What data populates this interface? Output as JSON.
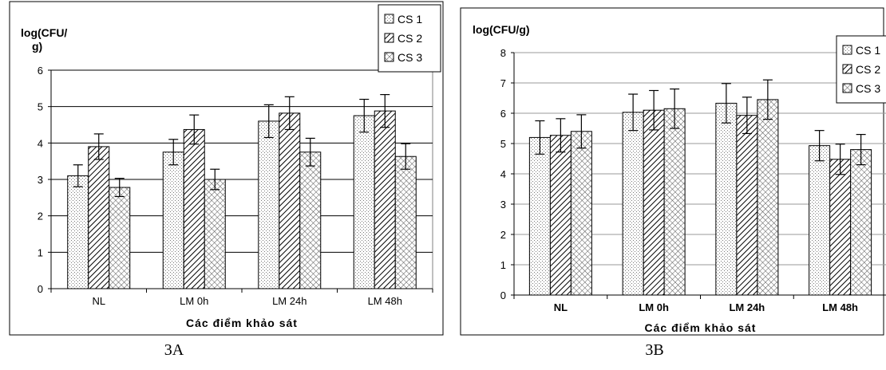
{
  "captions": [
    "3A",
    "3B"
  ],
  "chart_data": [
    {
      "type": "bar",
      "ylabel": "log(CFU/ g)",
      "xlabel": "Các điểm khảo sát",
      "categories": [
        "NL",
        "LM 0h",
        "LM 24h",
        "LM 48h"
      ],
      "ylim": [
        0,
        6
      ],
      "yticks": [
        "0",
        "1",
        "2",
        "3",
        "4",
        "5",
        "6"
      ],
      "grid": true,
      "legend": "top-right",
      "series": [
        {
          "name": "CS 1",
          "values": [
            3.1,
            3.75,
            4.6,
            4.75
          ],
          "errors": [
            0.3,
            0.35,
            0.45,
            0.45
          ]
        },
        {
          "name": "CS 2",
          "values": [
            3.9,
            4.37,
            4.82,
            4.88
          ],
          "errors": [
            0.35,
            0.4,
            0.45,
            0.45
          ]
        },
        {
          "name": "CS 3",
          "values": [
            2.78,
            3.0,
            3.75,
            3.63
          ],
          "errors": [
            0.25,
            0.28,
            0.38,
            0.35
          ]
        }
      ]
    },
    {
      "type": "bar",
      "ylabel": "log(CFU/g)",
      "xlabel": "Các điểm khảo sát",
      "categories": [
        "NL",
        "LM 0h",
        "LM 24h",
        "LM 48h"
      ],
      "ylim": [
        0,
        8
      ],
      "yticks": [
        "0",
        "1",
        "2",
        "3",
        "4",
        "5",
        "6",
        "7",
        "8"
      ],
      "grid": true,
      "legend": "top-right",
      "series": [
        {
          "name": "CS 1",
          "values": [
            5.2,
            6.03,
            6.33,
            4.93
          ],
          "errors": [
            0.55,
            0.6,
            0.65,
            0.5
          ]
        },
        {
          "name": "CS 2",
          "values": [
            5.27,
            6.1,
            5.93,
            4.48
          ],
          "errors": [
            0.55,
            0.65,
            0.6,
            0.5
          ]
        },
        {
          "name": "CS 3",
          "values": [
            5.4,
            6.15,
            6.45,
            4.8
          ],
          "errors": [
            0.55,
            0.65,
            0.65,
            0.5
          ]
        }
      ]
    }
  ]
}
